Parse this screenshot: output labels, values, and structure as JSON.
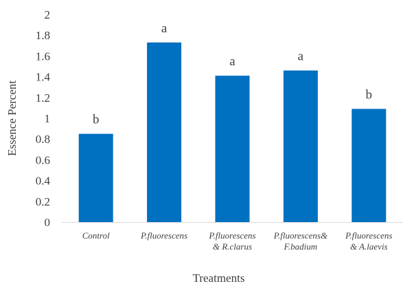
{
  "chart_data": {
    "type": "bar",
    "categories": [
      [
        "Control"
      ],
      [
        "P.fluorescens"
      ],
      [
        "P.fluorescens",
        "& R.clarus"
      ],
      [
        "P.fluorescens&",
        "F.badium"
      ],
      [
        "P.fluorescens",
        "& A.laevis"
      ]
    ],
    "values": [
      0.85,
      1.73,
      1.41,
      1.46,
      1.09
    ],
    "data_labels": [
      "b",
      "a",
      "a",
      "a",
      "b"
    ],
    "xlabel": "Treatments",
    "ylabel": "Essence Percent",
    "ylim": [
      0,
      2
    ],
    "yticks": [
      "0",
      "0.2",
      "0.4",
      "0.6",
      "0.8",
      "1",
      "1.2",
      "1.4",
      "1.6",
      "1.8",
      "2"
    ],
    "grid": false,
    "bar_color": "#0070C0",
    "axis_color": "#D9D9D9"
  }
}
